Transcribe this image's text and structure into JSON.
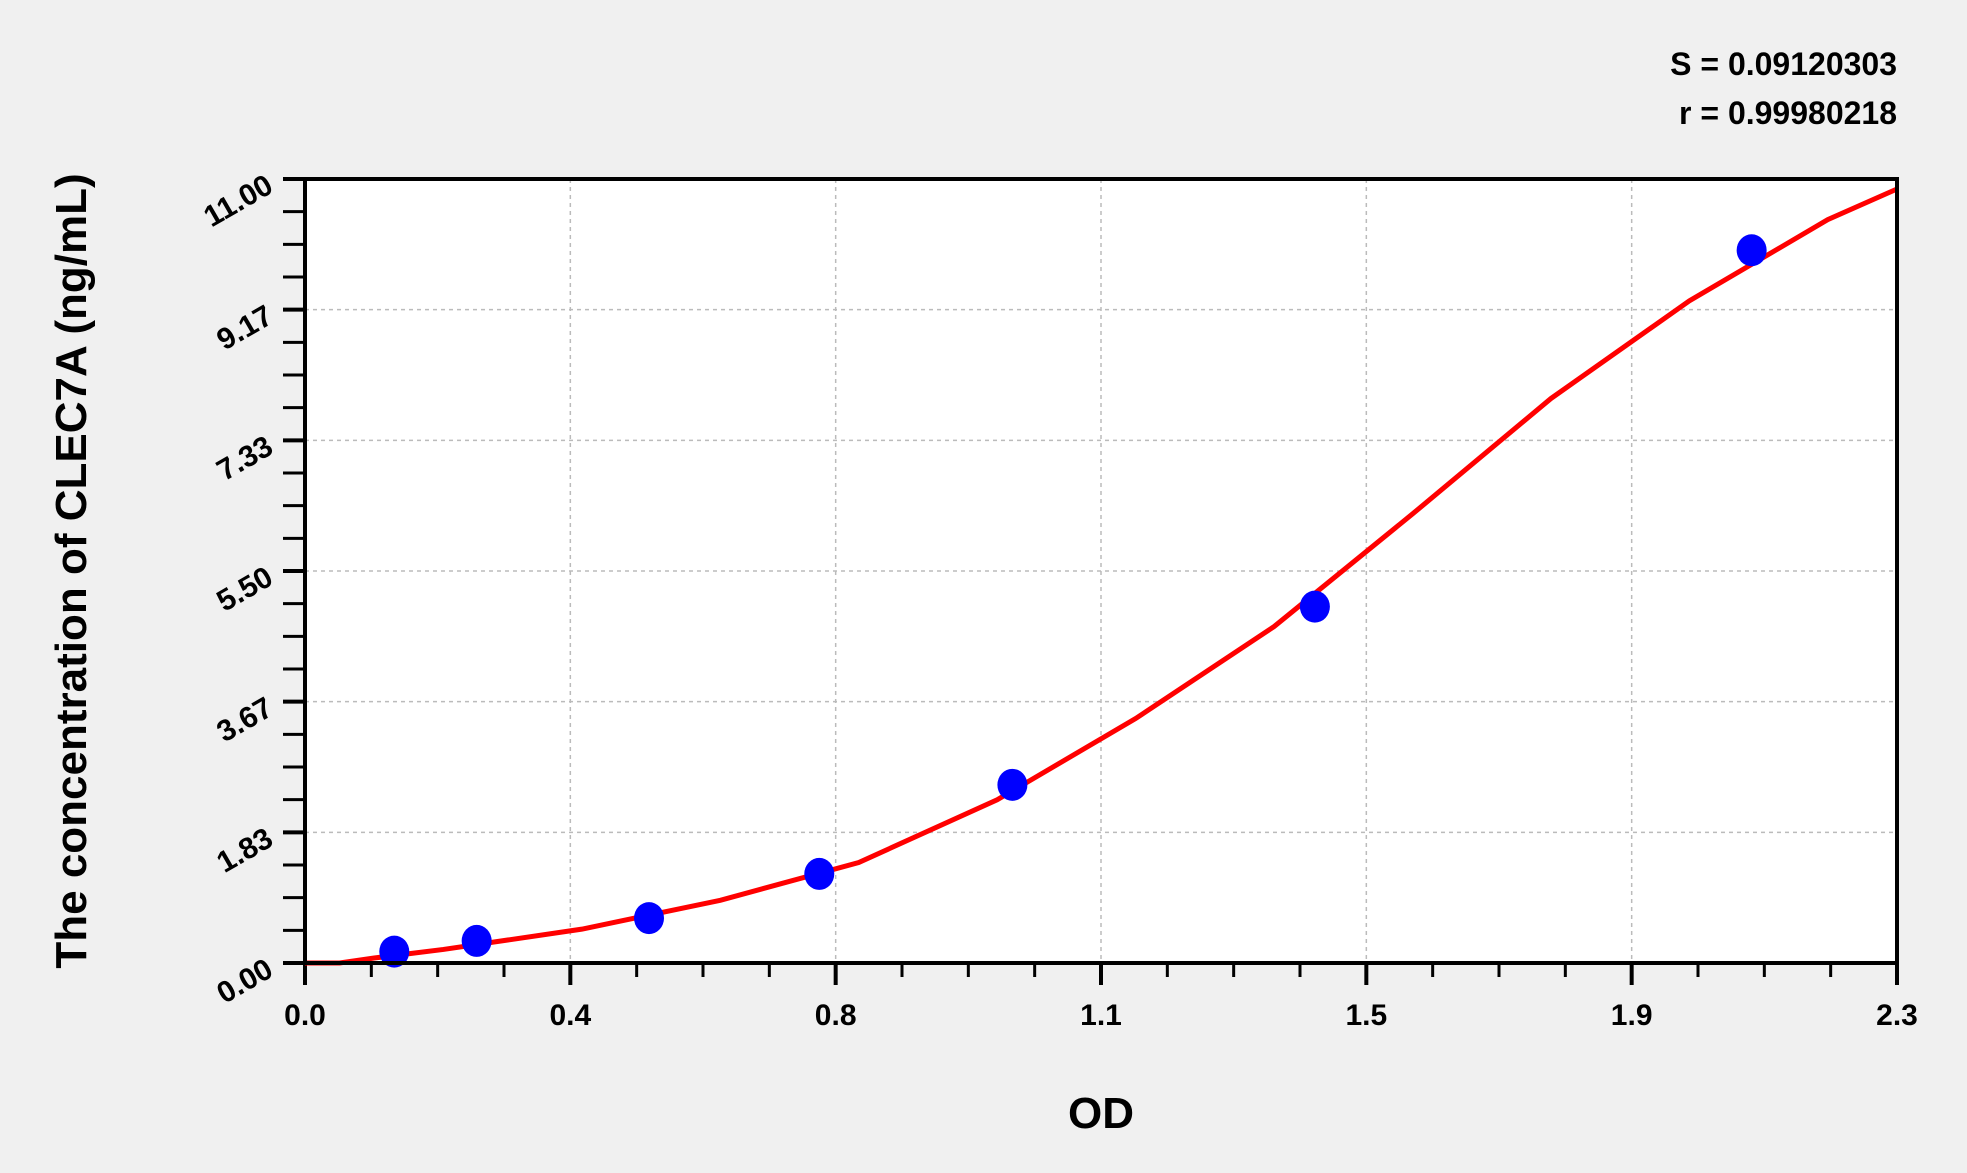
{
  "chart_data": {
    "type": "scatter",
    "xlabel": "OD",
    "ylabel": "The concentration of CLEC7A (ng/mL)",
    "xlim": [
      0,
      2.3
    ],
    "ylim": [
      0,
      11
    ],
    "x_tick_labels": [
      "0.0",
      "0.4",
      "0.8",
      "1.1",
      "1.5",
      "1.9",
      "2.3"
    ],
    "y_tick_labels": [
      "0.00",
      "1.83",
      "3.67",
      "5.50",
      "7.33",
      "9.17",
      "11.00"
    ],
    "grid": true,
    "annotations": [
      "S = 0.09120303",
      "r = 0.99980218"
    ],
    "points": {
      "x": [
        0.129,
        0.248,
        0.497,
        0.743,
        1.022,
        1.459,
        2.09
      ],
      "y": [
        0.16,
        0.31,
        0.63,
        1.25,
        2.5,
        5.0,
        10.0
      ],
      "color": "#0000ff"
    },
    "fit_curve": {
      "x": [
        0,
        0.05,
        0.1,
        0.2,
        0.4,
        0.6,
        0.8,
        1.0,
        1.2,
        1.4,
        1.6,
        1.8,
        2.0,
        2.2,
        2.3
      ],
      "y": [
        0,
        0.0,
        0.07,
        0.19,
        0.475,
        0.88,
        1.41,
        2.29,
        3.43,
        4.72,
        6.3,
        7.92,
        9.29,
        10.43,
        10.86
      ],
      "color": "#ff0000"
    }
  }
}
